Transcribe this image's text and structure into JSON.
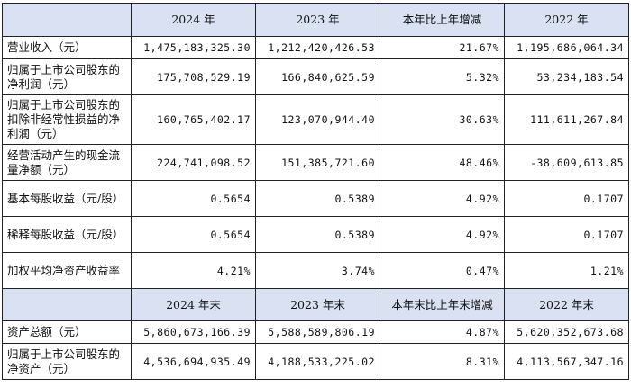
{
  "header1": {
    "corner": "",
    "c1": "2024 年",
    "c2": "2023 年",
    "c3": "本年比上年增减",
    "c4": "2022 年"
  },
  "rows1": [
    {
      "label": "营业收入（元）",
      "v1": "1,475,183,325.30",
      "v2": "1,212,420,426.53",
      "v3": "21.67%",
      "v4": "1,195,686,064.34"
    },
    {
      "label": "归属于上市公司股东的净利润（元）",
      "v1": "175,708,529.19",
      "v2": "166,840,625.59",
      "v3": "5.32%",
      "v4": "53,234,183.54"
    },
    {
      "label": "归属于上市公司股东的扣除非经常性损益的净利润（元）",
      "v1": "160,765,402.17",
      "v2": "123,070,944.40",
      "v3": "30.63%",
      "v4": "111,611,267.84"
    },
    {
      "label": "经营活动产生的现金流量净额（元）",
      "v1": "224,741,098.52",
      "v2": "151,385,721.60",
      "v3": "48.46%",
      "v4": "-38,609,613.85"
    },
    {
      "label": "基本每股收益（元/股）",
      "v1": "0.5654",
      "v2": "0.5389",
      "v3": "4.92%",
      "v4": "0.1707"
    },
    {
      "label": "稀释每股收益（元/股）",
      "v1": "0.5654",
      "v2": "0.5389",
      "v3": "4.92%",
      "v4": "0.1707"
    },
    {
      "label": "加权平均净资产收益率",
      "v1": "4.21%",
      "v2": "3.74%",
      "v3": "0.47%",
      "v4": "1.21%"
    }
  ],
  "header2": {
    "corner": "",
    "c1": "2024 年末",
    "c2": "2023 年末",
    "c3": "本年末比上年末增减",
    "c4": "2022 年末"
  },
  "rows2": [
    {
      "label": "资产总额（元）",
      "v1": "5,860,673,166.39",
      "v2": "5,588,589,806.19",
      "v3": "4.87%",
      "v4": "5,620,352,673.68"
    },
    {
      "label": "归属于上市公司股东的净资产（元）",
      "v1": "4,536,694,935.49",
      "v2": "4,188,533,225.02",
      "v3": "8.31%",
      "v4": "4,113,567,347.16"
    }
  ]
}
